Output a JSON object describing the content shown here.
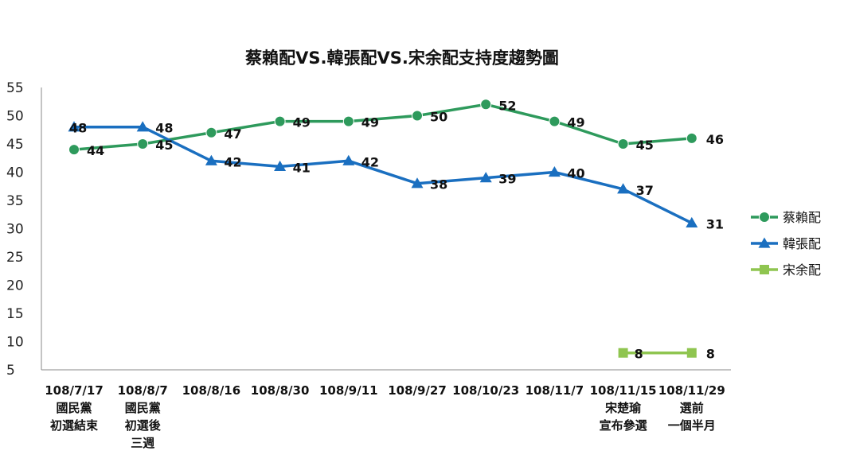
{
  "chart_data": {
    "type": "line",
    "title": "蔡賴配VS.韓張配VS.宋余配支持度趨勢圖",
    "xlabel": "",
    "ylabel": "",
    "ylim": [
      5,
      55
    ],
    "yticks": [
      5,
      10,
      15,
      20,
      25,
      30,
      35,
      40,
      45,
      50,
      55
    ],
    "grid": false,
    "legend_position": "right",
    "categories": [
      [
        "108/7/17",
        "國民黨",
        "初選結束"
      ],
      [
        "108/8/7",
        "國民黨",
        "初選後",
        "三週"
      ],
      [
        "108/8/16"
      ],
      [
        "108/8/30"
      ],
      [
        "108/9/11"
      ],
      [
        "108/9/27"
      ],
      [
        "108/10/23"
      ],
      [
        "108/11/7"
      ],
      [
        "108/11/15",
        "宋楚瑜",
        "宣布參選"
      ],
      [
        "108/11/29",
        "選前",
        "一個半月"
      ]
    ],
    "series": [
      {
        "name": "蔡賴配",
        "color": "#2e9a5c",
        "marker": "circle",
        "values": [
          44,
          45,
          47,
          49,
          49,
          50,
          52,
          49,
          45,
          46
        ]
      },
      {
        "name": "韓張配",
        "color": "#1a6fc0",
        "marker": "triangle",
        "values": [
          48,
          48,
          42,
          41,
          42,
          38,
          39,
          40,
          37,
          31
        ]
      },
      {
        "name": "宋余配",
        "color": "#8fc550",
        "marker": "square",
        "values": [
          null,
          null,
          null,
          null,
          null,
          null,
          null,
          null,
          8,
          8
        ]
      }
    ]
  }
}
